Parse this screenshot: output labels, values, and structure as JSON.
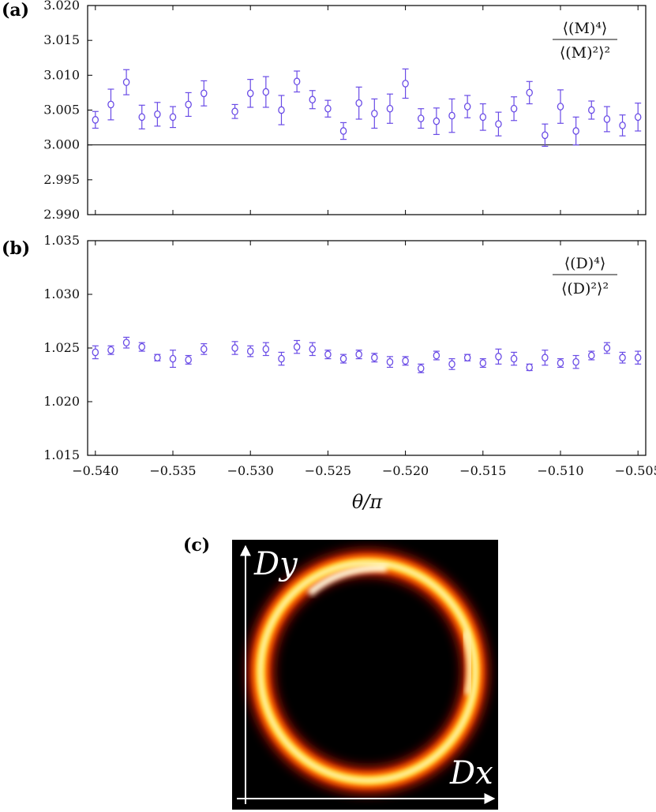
{
  "panel_labels": {
    "a": "(a)",
    "b": "(b)",
    "c": "(c)"
  },
  "chart_data": [
    {
      "panel": "a",
      "type": "scatter",
      "error_bars": true,
      "annotation": {
        "numerator": "⟨(M)⁴⟩",
        "denominator": "⟨(M)²⟩²"
      },
      "reference_line": 3.0,
      "ylim": [
        2.99,
        3.02
      ],
      "yticks": [
        "3.020",
        "3.015",
        "3.010",
        "3.005",
        "3.000",
        "2.995",
        "2.990"
      ],
      "ytick_values": [
        3.02,
        3.015,
        3.01,
        3.005,
        3.0,
        2.995,
        2.99
      ],
      "xlim": [
        -0.5405,
        -0.5045
      ],
      "marker_color": "#6a4ce6",
      "points": [
        {
          "x": -0.54,
          "y": 3.0036,
          "err": 0.0012
        },
        {
          "x": -0.539,
          "y": 3.0058,
          "err": 0.0022
        },
        {
          "x": -0.538,
          "y": 3.009,
          "err": 0.0018
        },
        {
          "x": -0.537,
          "y": 3.004,
          "err": 0.0017
        },
        {
          "x": -0.536,
          "y": 3.0044,
          "err": 0.0017
        },
        {
          "x": -0.535,
          "y": 3.004,
          "err": 0.0015
        },
        {
          "x": -0.534,
          "y": 3.0058,
          "err": 0.0017
        },
        {
          "x": -0.533,
          "y": 3.0074,
          "err": 0.0018
        },
        {
          "x": -0.531,
          "y": 3.0048,
          "err": 0.001
        },
        {
          "x": -0.53,
          "y": 3.0074,
          "err": 0.002
        },
        {
          "x": -0.529,
          "y": 3.0076,
          "err": 0.0022
        },
        {
          "x": -0.528,
          "y": 3.005,
          "err": 0.0021
        },
        {
          "x": -0.527,
          "y": 3.0091,
          "err": 0.0015
        },
        {
          "x": -0.526,
          "y": 3.0065,
          "err": 0.0013
        },
        {
          "x": -0.525,
          "y": 3.0052,
          "err": 0.0012
        },
        {
          "x": -0.524,
          "y": 3.002,
          "err": 0.0012
        },
        {
          "x": -0.523,
          "y": 3.006,
          "err": 0.0023
        },
        {
          "x": -0.522,
          "y": 3.0045,
          "err": 0.0021
        },
        {
          "x": -0.521,
          "y": 3.0052,
          "err": 0.0021
        },
        {
          "x": -0.52,
          "y": 3.0088,
          "err": 0.0021
        },
        {
          "x": -0.519,
          "y": 3.0038,
          "err": 0.0014
        },
        {
          "x": -0.518,
          "y": 3.0034,
          "err": 0.0019
        },
        {
          "x": -0.517,
          "y": 3.0042,
          "err": 0.0024
        },
        {
          "x": -0.516,
          "y": 3.0055,
          "err": 0.0016
        },
        {
          "x": -0.515,
          "y": 3.004,
          "err": 0.0019
        },
        {
          "x": -0.514,
          "y": 3.003,
          "err": 0.0017
        },
        {
          "x": -0.513,
          "y": 3.0052,
          "err": 0.0017
        },
        {
          "x": -0.512,
          "y": 3.0075,
          "err": 0.0016
        },
        {
          "x": -0.511,
          "y": 3.0014,
          "err": 0.0016
        },
        {
          "x": -0.51,
          "y": 3.0055,
          "err": 0.0024
        },
        {
          "x": -0.509,
          "y": 3.002,
          "err": 0.002
        },
        {
          "x": -0.508,
          "y": 3.005,
          "err": 0.0013
        },
        {
          "x": -0.507,
          "y": 3.0037,
          "err": 0.0018
        },
        {
          "x": -0.506,
          "y": 3.0028,
          "err": 0.0015
        },
        {
          "x": -0.505,
          "y": 3.004,
          "err": 0.002
        }
      ]
    },
    {
      "panel": "b",
      "type": "scatter",
      "error_bars": true,
      "annotation": {
        "numerator": "⟨(D)⁴⟩",
        "denominator": "⟨(D)²⟩²"
      },
      "ylim": [
        1.015,
        1.035
      ],
      "yticks": [
        "1.035",
        "1.030",
        "1.025",
        "1.020",
        "1.015"
      ],
      "ytick_values": [
        1.035,
        1.03,
        1.025,
        1.02,
        1.015
      ],
      "xlim": [
        -0.5405,
        -0.5045
      ],
      "xticks": [
        "−0.540",
        "−0.535",
        "−0.530",
        "−0.525",
        "−0.520",
        "−0.515",
        "−0.510",
        "−0.505"
      ],
      "xtick_values": [
        -0.54,
        -0.535,
        -0.53,
        -0.525,
        -0.52,
        -0.515,
        -0.51,
        -0.505
      ],
      "xlabel": "θ/π",
      "marker_color": "#6a4ce6",
      "points": [
        {
          "x": -0.54,
          "y": 1.0246,
          "err": 0.0006
        },
        {
          "x": -0.539,
          "y": 1.0248,
          "err": 0.0004
        },
        {
          "x": -0.538,
          "y": 1.0255,
          "err": 0.0005
        },
        {
          "x": -0.537,
          "y": 1.0251,
          "err": 0.0004
        },
        {
          "x": -0.536,
          "y": 1.0241,
          "err": 0.0003
        },
        {
          "x": -0.535,
          "y": 1.024,
          "err": 0.0008
        },
        {
          "x": -0.534,
          "y": 1.0239,
          "err": 0.0004
        },
        {
          "x": -0.533,
          "y": 1.0249,
          "err": 0.0005
        },
        {
          "x": -0.531,
          "y": 1.025,
          "err": 0.0006
        },
        {
          "x": -0.53,
          "y": 1.0247,
          "err": 0.0005
        },
        {
          "x": -0.529,
          "y": 1.0249,
          "err": 0.0006
        },
        {
          "x": -0.528,
          "y": 1.024,
          "err": 0.0006
        },
        {
          "x": -0.527,
          "y": 1.0251,
          "err": 0.0006
        },
        {
          "x": -0.526,
          "y": 1.0249,
          "err": 0.0006
        },
        {
          "x": -0.525,
          "y": 1.0244,
          "err": 0.0004
        },
        {
          "x": -0.524,
          "y": 1.024,
          "err": 0.0004
        },
        {
          "x": -0.523,
          "y": 1.0244,
          "err": 0.0004
        },
        {
          "x": -0.522,
          "y": 1.0241,
          "err": 0.0004
        },
        {
          "x": -0.521,
          "y": 1.0237,
          "err": 0.0005
        },
        {
          "x": -0.52,
          "y": 1.0238,
          "err": 0.0004
        },
        {
          "x": -0.519,
          "y": 1.0231,
          "err": 0.0004
        },
        {
          "x": -0.518,
          "y": 1.0243,
          "err": 0.0004
        },
        {
          "x": -0.517,
          "y": 1.0235,
          "err": 0.0005
        },
        {
          "x": -0.516,
          "y": 1.0241,
          "err": 0.0003
        },
        {
          "x": -0.515,
          "y": 1.0236,
          "err": 0.0004
        },
        {
          "x": -0.514,
          "y": 1.0242,
          "err": 0.0007
        },
        {
          "x": -0.513,
          "y": 1.024,
          "err": 0.0006
        },
        {
          "x": -0.512,
          "y": 1.0232,
          "err": 0.0003
        },
        {
          "x": -0.511,
          "y": 1.0241,
          "err": 0.0007
        },
        {
          "x": -0.51,
          "y": 1.0236,
          "err": 0.0004
        },
        {
          "x": -0.509,
          "y": 1.0237,
          "err": 0.0006
        },
        {
          "x": -0.508,
          "y": 1.0243,
          "err": 0.0004
        },
        {
          "x": -0.507,
          "y": 1.025,
          "err": 0.0005
        },
        {
          "x": -0.506,
          "y": 1.0241,
          "err": 0.0005
        },
        {
          "x": -0.505,
          "y": 1.0241,
          "err": 0.0006
        }
      ]
    }
  ],
  "ring_panel": {
    "panel": "c",
    "x_axis_label": "Dx",
    "y_axis_label": "Dy",
    "colors": {
      "background": "#000000",
      "outer": "#cc1a00",
      "mid": "#ff8a00",
      "inner": "#ffe24a",
      "core": "#fff7c0"
    }
  }
}
